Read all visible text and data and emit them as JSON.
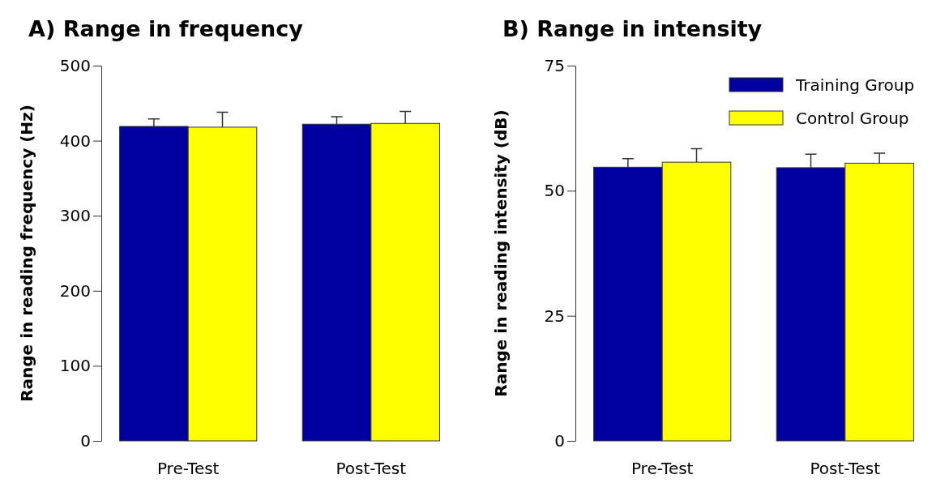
{
  "chart_data": [
    {
      "type": "bar",
      "title": "A) Range in frequency",
      "ylabel": "Range in reading frequency (Hz)",
      "categories": [
        "Pre-Test",
        "Post-Test"
      ],
      "ylim": [
        0,
        500
      ],
      "yticks": [
        0,
        100,
        200,
        300,
        400,
        500
      ],
      "grid": false,
      "legend": false,
      "series": [
        {
          "color": "#0000a0",
          "values": [
            419,
            422
          ],
          "errors": [
            [
              419,
              429
            ],
            [
              422,
              432
            ]
          ]
        },
        {
          "color": "#ffff00",
          "values": [
            418,
            423
          ],
          "errors": [
            [
              418,
              438
            ],
            [
              423,
              439
            ]
          ]
        }
      ]
    },
    {
      "type": "bar",
      "title": "B) Range in intensity",
      "ylabel": "Range in reading intensity (dB)",
      "categories": [
        "Pre-Test",
        "Post-Test"
      ],
      "ylim": [
        0,
        75
      ],
      "yticks": [
        0,
        25,
        50,
        75
      ],
      "grid": false,
      "legend": "top right",
      "series": [
        {
          "name": "Training Group",
          "color": "#0000a0",
          "values": [
            54.7,
            54.6
          ],
          "errors": [
            [
              54.7,
              56.4
            ],
            [
              54.6,
              57.3
            ]
          ]
        },
        {
          "name": "Control Group",
          "color": "#ffff00",
          "values": [
            55.7,
            55.5
          ],
          "errors": [
            [
              55.7,
              58.4
            ],
            [
              55.5,
              57.5
            ]
          ]
        }
      ]
    }
  ]
}
